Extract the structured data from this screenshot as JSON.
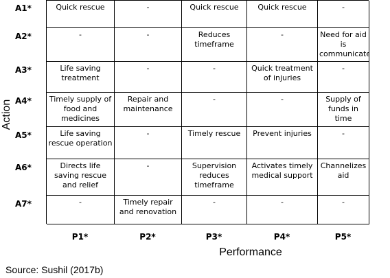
{
  "y_axis_title": "Action",
  "x_axis_title": "Performance",
  "source": "Source: Sushil (2017b)",
  "rows": [
    "A1*",
    "A2*",
    "A3*",
    "A4*",
    "A5*",
    "A6*",
    "A7*"
  ],
  "columns": [
    "P1*",
    "P2*",
    "P3*",
    "P4*",
    "P5*"
  ],
  "cells": [
    [
      "Quick rescue",
      "-",
      "Quick rescue",
      "Quick rescue",
      "-"
    ],
    [
      "-",
      "-",
      "Reduces timeframe",
      "-",
      "Need for aid is communicated"
    ],
    [
      "Life saving treatment",
      "-",
      "-",
      "Quick treatment of injuries",
      "-"
    ],
    [
      "Timely supply of food and medicines",
      "Repair and maintenance",
      "-",
      "-",
      "Supply of funds in time"
    ],
    [
      "Life saving rescue operation",
      "-",
      "Timely rescue",
      "Prevent injuries",
      "-"
    ],
    [
      "Directs life saving rescue and relief",
      "-",
      "Supervision reduces timeframe",
      "Activates timely medical support",
      "Channelizes aid"
    ],
    [
      "-",
      "Timely repair and renovation",
      "-",
      "-",
      "-"
    ]
  ]
}
